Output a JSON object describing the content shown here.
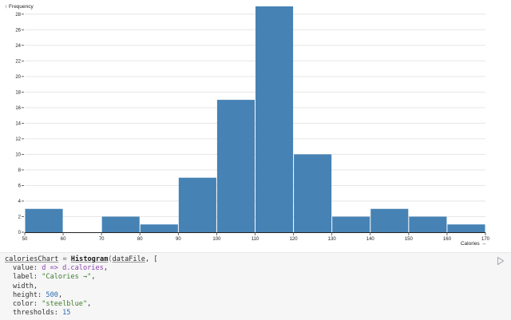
{
  "chart_data": {
    "type": "bar",
    "bins": [
      {
        "x0": 50,
        "x1": 60,
        "count": 3
      },
      {
        "x0": 60,
        "x1": 70,
        "count": 0
      },
      {
        "x0": 70,
        "x1": 80,
        "count": 2
      },
      {
        "x0": 80,
        "x1": 90,
        "count": 1
      },
      {
        "x0": 90,
        "x1": 100,
        "count": 7
      },
      {
        "x0": 100,
        "x1": 110,
        "count": 17
      },
      {
        "x0": 110,
        "x1": 120,
        "count": 29
      },
      {
        "x0": 120,
        "x1": 130,
        "count": 10
      },
      {
        "x0": 130,
        "x1": 140,
        "count": 2
      },
      {
        "x0": 140,
        "x1": 150,
        "count": 3
      },
      {
        "x0": 150,
        "x1": 160,
        "count": 2
      },
      {
        "x0": 160,
        "x1": 170,
        "count": 1
      }
    ],
    "xlabel": "Calories →",
    "ylabel": "↑ Frequency",
    "x_ticks": [
      50,
      60,
      70,
      80,
      90,
      100,
      110,
      120,
      130,
      140,
      150,
      160,
      170
    ],
    "y_ticks": [
      0,
      2,
      4,
      6,
      8,
      10,
      12,
      14,
      16,
      18,
      20,
      22,
      24,
      26,
      28
    ],
    "xlim": [
      50,
      170
    ],
    "ylim": [
      0,
      29
    ],
    "grid": "horizontal",
    "color": "#4682b4"
  },
  "code": {
    "line1": {
      "name": "caloriesChart",
      "eq": " = ",
      "fn": "Histogram",
      "arg": "dataFile",
      "tail": ", ["
    },
    "line2": {
      "key": "value: ",
      "val": "d => d.calories",
      "tail": ","
    },
    "line3": {
      "key": "label: ",
      "val": "\"Calories →\"",
      "tail": ","
    },
    "line4": {
      "key": "width",
      "tail": ","
    },
    "line5": {
      "key": "height: ",
      "val": "500",
      "tail": ","
    },
    "line6": {
      "key": "color: ",
      "val": "\"steelblue\"",
      "tail": ","
    },
    "line7": {
      "key": "thresholds: ",
      "val": "15"
    }
  },
  "icons": {
    "run": "play-icon"
  }
}
